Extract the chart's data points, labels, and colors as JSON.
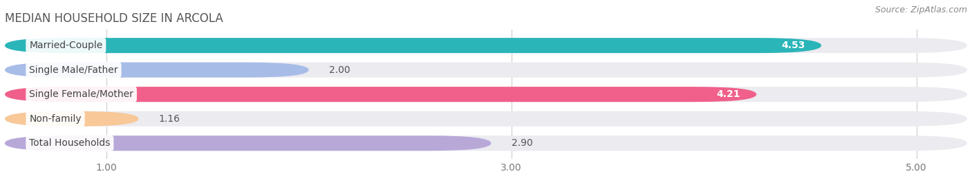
{
  "title": "MEDIAN HOUSEHOLD SIZE IN ARCOLA",
  "source": "Source: ZipAtlas.com",
  "categories": [
    "Married-Couple",
    "Single Male/Father",
    "Single Female/Mother",
    "Non-family",
    "Total Households"
  ],
  "values": [
    4.53,
    2.0,
    4.21,
    1.16,
    2.9
  ],
  "colors": [
    "#2ab5b8",
    "#a8bce8",
    "#f0608a",
    "#f8c898",
    "#b8a8d8"
  ],
  "bar_bg_color": "#ebebf0",
  "fig_bg_color": "#ffffff",
  "xmin": 0.5,
  "xmax": 5.25,
  "xticks": [
    1.0,
    3.0,
    5.0
  ],
  "xtick_labels": [
    "1.00",
    "3.00",
    "5.00"
  ],
  "label_fontsize": 10,
  "value_fontsize": 10,
  "title_fontsize": 12,
  "source_fontsize": 9,
  "bar_height": 0.62,
  "value_inside_threshold": 3.5
}
